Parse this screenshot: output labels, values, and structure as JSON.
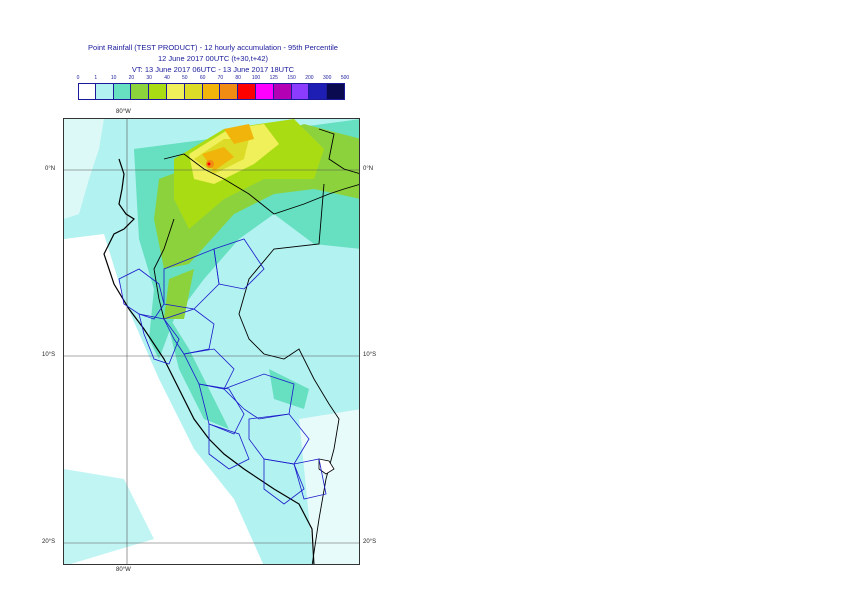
{
  "title": {
    "line1": "Point Rainfall (TEST PRODUCT) - 12 hourly accumulation - 95th Percentile",
    "line2": "12 June 2017 00UTC (t+30,t+42)",
    "line3": "VT: 13 June 2017 06UTC - 13 June 2017 18UTC"
  },
  "legend": {
    "thresholds": [
      "0",
      "1",
      "10",
      "20",
      "30",
      "40",
      "50",
      "60",
      "70",
      "80",
      "100",
      "125",
      "150",
      "200",
      "300",
      "500"
    ],
    "colors": [
      "#ffffff",
      "#b2f2f0",
      "#66e0c0",
      "#8cd23c",
      "#aadc14",
      "#f0f05a",
      "#dcdc28",
      "#f0b40a",
      "#f08c14",
      "#ff0000",
      "#ff00ff",
      "#b400b4",
      "#8c3cff",
      "#1e1eb4",
      "#0a0a50"
    ]
  },
  "axes": {
    "lon_top": "80°W",
    "lon_bottom": "80°W",
    "lat_left": [
      "0°N",
      "10°S",
      "20°S"
    ],
    "lat_right": [
      "0°N",
      "10°S",
      "20°S"
    ]
  }
}
